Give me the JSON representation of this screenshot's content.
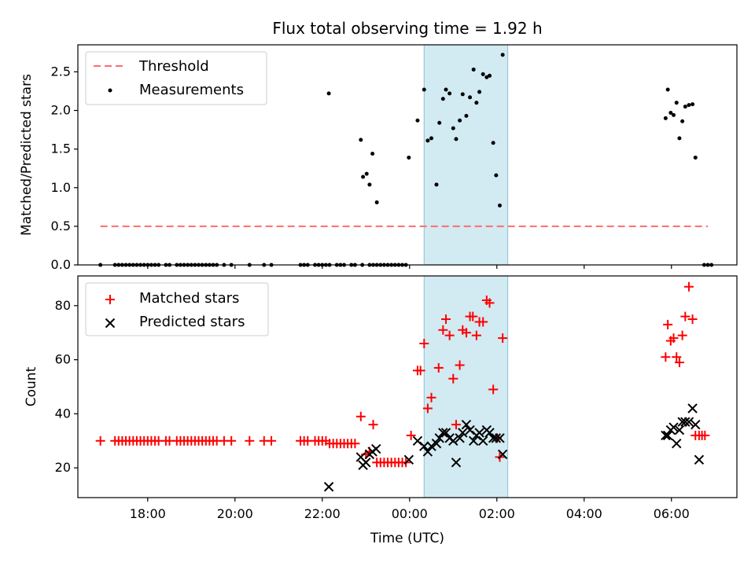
{
  "colors": {
    "span_fill": "#add8e6",
    "threshold": "#ff6b6b",
    "measurements": "#000000",
    "matched": "#ff0000",
    "predicted": "#000000"
  },
  "chart_data": [
    {
      "type": "scatter",
      "title": "Flux total observing time = 1.92 h",
      "xlabel": "",
      "ylabel": "Matched/Predicted stars",
      "xlim": [
        -7.6,
        7.5
      ],
      "ylim": [
        0,
        2.85
      ],
      "yticks": [
        "0.0",
        "0.5",
        "1.0",
        "1.5",
        "2.0",
        "2.5"
      ],
      "ytick_values": [
        0,
        0.5,
        1.0,
        1.5,
        2.0,
        2.5
      ],
      "legend": "upper left",
      "observing_span": [
        "00:20",
        "02:15"
      ],
      "threshold": {
        "name": "Threshold",
        "y": 0.5,
        "x_range": [
          "16:55",
          "06:50"
        ]
      },
      "series": [
        {
          "name": "Measurements",
          "marker": "dot",
          "points": [
            [
              "16:55",
              0
            ],
            [
              "17:15",
              0
            ],
            [
              "17:20",
              0
            ],
            [
              "17:25",
              0
            ],
            [
              "17:30",
              0
            ],
            [
              "17:35",
              0
            ],
            [
              "17:40",
              0
            ],
            [
              "17:45",
              0
            ],
            [
              "17:50",
              0
            ],
            [
              "17:55",
              0
            ],
            [
              "18:00",
              0
            ],
            [
              "18:05",
              0
            ],
            [
              "18:10",
              0
            ],
            [
              "18:15",
              0
            ],
            [
              "18:25",
              0
            ],
            [
              "18:30",
              0
            ],
            [
              "18:40",
              0
            ],
            [
              "18:45",
              0
            ],
            [
              "18:50",
              0
            ],
            [
              "18:55",
              0
            ],
            [
              "19:00",
              0
            ],
            [
              "19:05",
              0
            ],
            [
              "19:10",
              0
            ],
            [
              "19:15",
              0
            ],
            [
              "19:20",
              0
            ],
            [
              "19:25",
              0
            ],
            [
              "19:30",
              0
            ],
            [
              "19:35",
              0
            ],
            [
              "19:45",
              0
            ],
            [
              "19:55",
              0
            ],
            [
              "20:20",
              0
            ],
            [
              "20:40",
              0
            ],
            [
              "20:50",
              0
            ],
            [
              "21:30",
              0
            ],
            [
              "21:35",
              0
            ],
            [
              "21:40",
              0
            ],
            [
              "21:50",
              0
            ],
            [
              "21:55",
              0
            ],
            [
              "22:00",
              0
            ],
            [
              "22:05",
              0
            ],
            [
              "22:10",
              0
            ],
            [
              "22:20",
              0
            ],
            [
              "22:25",
              0
            ],
            [
              "22:30",
              0
            ],
            [
              "22:40",
              0
            ],
            [
              "22:45",
              0
            ],
            [
              "22:55",
              0
            ],
            [
              "23:05",
              0
            ],
            [
              "23:10",
              0
            ],
            [
              "23:15",
              0
            ],
            [
              "23:20",
              0
            ],
            [
              "23:25",
              0
            ],
            [
              "23:30",
              0
            ],
            [
              "23:35",
              0
            ],
            [
              "23:40",
              0
            ],
            [
              "23:45",
              0
            ],
            [
              "23:50",
              0
            ],
            [
              "23:55",
              0
            ],
            [
              "06:45",
              0
            ],
            [
              "06:50",
              0
            ],
            [
              "06:55",
              0
            ],
            [
              "22:09",
              2.22
            ],
            [
              "22:53",
              1.62
            ],
            [
              "22:56",
              1.14
            ],
            [
              "23:01",
              1.18
            ],
            [
              "23:05",
              1.04
            ],
            [
              "23:09",
              1.44
            ],
            [
              "23:15",
              0.81
            ],
            [
              "23:59",
              1.39
            ],
            [
              "00:11",
              1.87
            ],
            [
              "00:20",
              2.27
            ],
            [
              "00:25",
              1.61
            ],
            [
              "00:30",
              1.64
            ],
            [
              "00:37",
              1.04
            ],
            [
              "00:41",
              1.84
            ],
            [
              "00:46",
              2.15
            ],
            [
              "00:50",
              2.27
            ],
            [
              "00:55",
              2.22
            ],
            [
              "01:00",
              1.77
            ],
            [
              "01:04",
              1.63
            ],
            [
              "01:09",
              1.87
            ],
            [
              "01:13",
              2.21
            ],
            [
              "01:18",
              1.93
            ],
            [
              "01:23",
              2.17
            ],
            [
              "01:28",
              2.53
            ],
            [
              "01:32",
              2.1
            ],
            [
              "01:36",
              2.24
            ],
            [
              "01:41",
              2.47
            ],
            [
              "01:46",
              2.43
            ],
            [
              "01:50",
              2.45
            ],
            [
              "01:55",
              1.58
            ],
            [
              "01:59",
              1.16
            ],
            [
              "02:04",
              0.77
            ],
            [
              "02:08",
              2.72
            ],
            [
              "05:52",
              1.9
            ],
            [
              "05:55",
              2.27
            ],
            [
              "05:59",
              1.97
            ],
            [
              "06:03",
              1.94
            ],
            [
              "06:07",
              2.1
            ],
            [
              "06:11",
              1.64
            ],
            [
              "06:15",
              1.86
            ],
            [
              "06:19",
              2.05
            ],
            [
              "06:24",
              2.07
            ],
            [
              "06:29",
              2.08
            ],
            [
              "06:33",
              1.39
            ]
          ]
        }
      ]
    },
    {
      "type": "scatter",
      "title": "",
      "xlabel": "Time (UTC)",
      "ylabel": "Count",
      "xlim": [
        -7.6,
        7.5
      ],
      "ylim": [
        9,
        91
      ],
      "xticks": [
        "18:00",
        "20:00",
        "22:00",
        "00:00",
        "02:00",
        "04:00",
        "06:00"
      ],
      "xtick_values": [
        -6,
        -4,
        -2,
        0,
        2,
        4,
        6
      ],
      "yticks": [
        "20",
        "40",
        "60",
        "80"
      ],
      "ytick_values": [
        20,
        40,
        60,
        80
      ],
      "legend": "upper left",
      "observing_span": [
        "00:20",
        "02:15"
      ],
      "series": [
        {
          "name": "Matched stars",
          "marker": "plus",
          "points": [
            [
              "16:55",
              30
            ],
            [
              "17:15",
              30
            ],
            [
              "17:20",
              30
            ],
            [
              "17:25",
              30
            ],
            [
              "17:30",
              30
            ],
            [
              "17:35",
              30
            ],
            [
              "17:40",
              30
            ],
            [
              "17:45",
              30
            ],
            [
              "17:50",
              30
            ],
            [
              "17:55",
              30
            ],
            [
              "18:00",
              30
            ],
            [
              "18:05",
              30
            ],
            [
              "18:10",
              30
            ],
            [
              "18:15",
              30
            ],
            [
              "18:25",
              30
            ],
            [
              "18:30",
              30
            ],
            [
              "18:40",
              30
            ],
            [
              "18:45",
              30
            ],
            [
              "18:50",
              30
            ],
            [
              "18:55",
              30
            ],
            [
              "19:00",
              30
            ],
            [
              "19:05",
              30
            ],
            [
              "19:10",
              30
            ],
            [
              "19:15",
              30
            ],
            [
              "19:20",
              30
            ],
            [
              "19:25",
              30
            ],
            [
              "19:30",
              30
            ],
            [
              "19:35",
              30
            ],
            [
              "19:45",
              30
            ],
            [
              "19:55",
              30
            ],
            [
              "20:20",
              30
            ],
            [
              "20:40",
              30
            ],
            [
              "20:50",
              30
            ],
            [
              "21:30",
              30
            ],
            [
              "21:35",
              30
            ],
            [
              "21:40",
              30
            ],
            [
              "21:50",
              30
            ],
            [
              "21:55",
              30
            ],
            [
              "22:00",
              30
            ],
            [
              "22:05",
              30
            ],
            [
              "22:10",
              29
            ],
            [
              "22:15",
              29
            ],
            [
              "22:20",
              29
            ],
            [
              "22:25",
              29
            ],
            [
              "22:30",
              29
            ],
            [
              "22:35",
              29
            ],
            [
              "22:40",
              29
            ],
            [
              "22:45",
              29
            ],
            [
              "22:53",
              39
            ],
            [
              "23:00",
              25
            ],
            [
              "23:05",
              26
            ],
            [
              "23:10",
              36
            ],
            [
              "23:15",
              22
            ],
            [
              "23:20",
              22
            ],
            [
              "23:25",
              22
            ],
            [
              "23:30",
              22
            ],
            [
              "23:35",
              22
            ],
            [
              "23:40",
              22
            ],
            [
              "23:45",
              22
            ],
            [
              "23:50",
              22
            ],
            [
              "23:55",
              22
            ],
            [
              "00:02",
              32
            ],
            [
              "00:11",
              56
            ],
            [
              "00:15",
              56
            ],
            [
              "00:20",
              66
            ],
            [
              "00:25",
              42
            ],
            [
              "00:30",
              46
            ],
            [
              "00:40",
              57
            ],
            [
              "00:46",
              71
            ],
            [
              "00:50",
              75
            ],
            [
              "00:55",
              69
            ],
            [
              "01:00",
              53
            ],
            [
              "01:04",
              36
            ],
            [
              "01:09",
              58
            ],
            [
              "01:13",
              71
            ],
            [
              "01:18",
              70
            ],
            [
              "01:23",
              76
            ],
            [
              "01:27",
              76
            ],
            [
              "01:32",
              69
            ],
            [
              "01:36",
              74
            ],
            [
              "01:41",
              74
            ],
            [
              "01:46",
              82
            ],
            [
              "01:50",
              81
            ],
            [
              "01:55",
              49
            ],
            [
              "02:00",
              31
            ],
            [
              "02:04",
              24
            ],
            [
              "02:08",
              68
            ],
            [
              "05:52",
              61
            ],
            [
              "05:55",
              73
            ],
            [
              "05:59",
              67
            ],
            [
              "06:03",
              68
            ],
            [
              "06:07",
              61
            ],
            [
              "06:11",
              59
            ],
            [
              "06:15",
              69
            ],
            [
              "06:19",
              76
            ],
            [
              "06:24",
              87
            ],
            [
              "06:29",
              75
            ],
            [
              "06:33",
              32
            ],
            [
              "06:38",
              32
            ],
            [
              "06:42",
              32
            ],
            [
              "06:46",
              32
            ]
          ]
        },
        {
          "name": "Predicted stars",
          "marker": "x",
          "points": [
            [
              "22:09",
              13
            ],
            [
              "22:53",
              24
            ],
            [
              "22:56",
              21
            ],
            [
              "23:00",
              22
            ],
            [
              "23:05",
              25
            ],
            [
              "23:09",
              26
            ],
            [
              "23:14",
              27
            ],
            [
              "23:59",
              23
            ],
            [
              "00:11",
              30
            ],
            [
              "00:20",
              28
            ],
            [
              "00:25",
              26
            ],
            [
              "00:30",
              28
            ],
            [
              "00:37",
              29
            ],
            [
              "00:41",
              31
            ],
            [
              "00:46",
              33
            ],
            [
              "00:50",
              33
            ],
            [
              "00:55",
              31
            ],
            [
              "01:00",
              30
            ],
            [
              "01:04",
              22
            ],
            [
              "01:09",
              31
            ],
            [
              "01:13",
              33
            ],
            [
              "01:18",
              36
            ],
            [
              "01:23",
              34
            ],
            [
              "01:28",
              30
            ],
            [
              "01:32",
              32
            ],
            [
              "01:36",
              33
            ],
            [
              "01:41",
              30
            ],
            [
              "01:46",
              34
            ],
            [
              "01:50",
              33
            ],
            [
              "01:55",
              31
            ],
            [
              "01:59",
              31
            ],
            [
              "02:04",
              31
            ],
            [
              "02:08",
              25
            ],
            [
              "05:52",
              32
            ],
            [
              "05:55",
              32
            ],
            [
              "05:59",
              34
            ],
            [
              "06:03",
              35
            ],
            [
              "06:07",
              29
            ],
            [
              "06:11",
              34
            ],
            [
              "06:15",
              37
            ],
            [
              "06:19",
              37
            ],
            [
              "06:24",
              37
            ],
            [
              "06:29",
              42
            ],
            [
              "06:33",
              36
            ],
            [
              "06:38",
              23
            ]
          ]
        }
      ]
    }
  ]
}
